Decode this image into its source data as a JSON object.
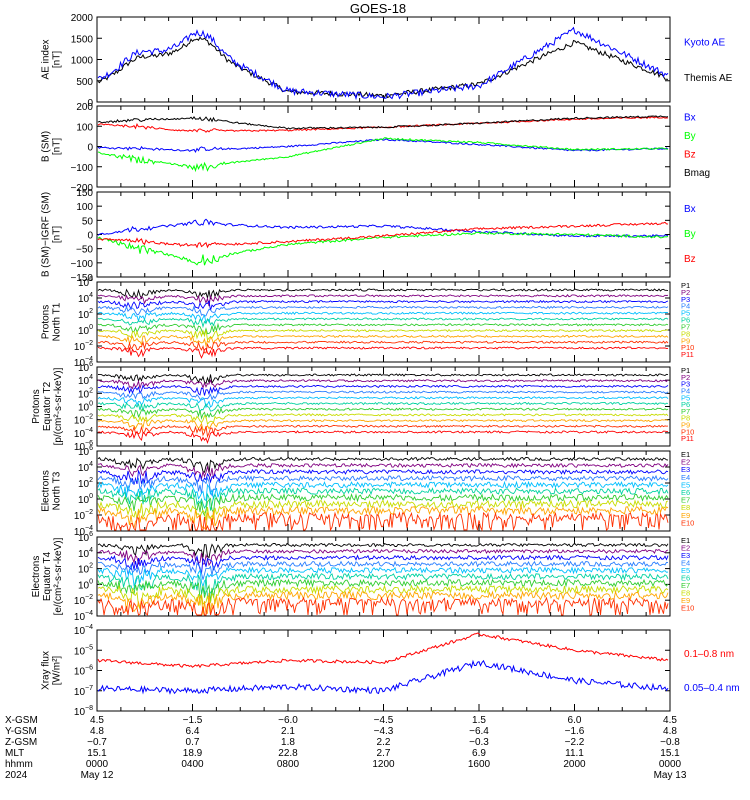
{
  "title": "GOES-18",
  "colors": {
    "black": "#000000",
    "blue": "#0000ff",
    "red": "#ff0000",
    "green": "#00ff00",
    "ladder": [
      "#000000",
      "#800080",
      "#0000ff",
      "#2a7fff",
      "#00bfff",
      "#00d2a0",
      "#32cd32",
      "#c8dc00",
      "#ffa500",
      "#ff3000",
      "#ff0000",
      "#a00000"
    ]
  },
  "panels": [
    {
      "id": "ae",
      "ylabel": [
        "AE index",
        "[nT]"
      ],
      "yticks": [
        "2000",
        "1500",
        "1000",
        "500",
        "0"
      ],
      "legend": [
        {
          "text": "Kyoto AE",
          "color": "#0000ff"
        },
        {
          "text": "Themis AE",
          "color": "#000000"
        }
      ]
    },
    {
      "id": "bsm",
      "ylabel": [
        "B (SM)",
        "[nT]"
      ],
      "yticks": [
        "200",
        "100",
        "0",
        "−100",
        "−200"
      ],
      "legend": [
        {
          "text": "Bx",
          "color": "#0000ff"
        },
        {
          "text": "By",
          "color": "#00ff00"
        },
        {
          "text": "Bz",
          "color": "#ff0000"
        },
        {
          "text": "Bmag",
          "color": "#000000"
        }
      ]
    },
    {
      "id": "bigrf",
      "ylabel": [
        "B (SM)−IGRF (SM)",
        "[nT]"
      ],
      "yticks": [
        "150",
        "100",
        "50",
        "0",
        "−50",
        "−100",
        "−150"
      ],
      "legend": [
        {
          "text": "Bx",
          "color": "#0000ff"
        },
        {
          "text": "By",
          "color": "#00ff00"
        },
        {
          "text": "Bz",
          "color": "#ff0000"
        }
      ]
    },
    {
      "id": "pnorth",
      "ylabel": [
        "Protons",
        "North T1"
      ],
      "yticks": [
        "6",
        "4",
        "2",
        "0",
        "−2",
        "−4"
      ],
      "legend_small": [
        "P1",
        "P2",
        "P3",
        "P4",
        "P5",
        "P6",
        "P7",
        "P8",
        "P9",
        "P10",
        "P11"
      ]
    },
    {
      "id": "peq",
      "ylabel": [
        "Protons",
        "Equator T2",
        "[p/(cm²-s-sr-keV)]"
      ],
      "yticks": [
        "6",
        "4",
        "2",
        "0",
        "−2",
        "−4",
        "−6"
      ],
      "legend_small": [
        "P1",
        "P2",
        "P3",
        "P4",
        "P5",
        "P6",
        "P7",
        "P8",
        "P9",
        "P10",
        "P11"
      ]
    },
    {
      "id": "enorth",
      "ylabel": [
        "Electrons",
        "North T3"
      ],
      "yticks": [
        "6",
        "4",
        "2",
        "0",
        "−2",
        "−4"
      ],
      "legend_small": [
        "E1",
        "E2",
        "E3",
        "E4",
        "E5",
        "E6",
        "E7",
        "E8",
        "E9",
        "E10"
      ]
    },
    {
      "id": "eeq",
      "ylabel": [
        "Electrons",
        "Equator T4",
        "[e/(cm²-s-sr-keV)]"
      ],
      "yticks": [
        "6",
        "4",
        "2",
        "0",
        "−2",
        "−4"
      ],
      "legend_small": [
        "E1",
        "E2",
        "E3",
        "E4",
        "E5",
        "E6",
        "E7",
        "E8",
        "E9",
        "E10"
      ]
    },
    {
      "id": "xray",
      "ylabel": [
        "Xray flux",
        "[W/m²]"
      ],
      "yticks": [
        "−4",
        "−5",
        "−6",
        "−7",
        "−8"
      ],
      "legend": [
        {
          "text": "0.1–0.8 nm",
          "color": "#ff0000"
        },
        {
          "text": "0.05–0.4 nm",
          "color": "#0000ff"
        }
      ]
    }
  ],
  "footer": {
    "labels": [
      "X-GSM",
      "Y-GSM",
      "Z-GSM",
      "MLT",
      "hhmm",
      "2024"
    ],
    "columns": [
      [
        "4.5",
        "4.8",
        "−0.7",
        "15.1",
        "0000",
        "May 12"
      ],
      [
        "−1.5",
        "6.4",
        "0.7",
        "18.9",
        "0400",
        ""
      ],
      [
        "−6.0",
        "2.1",
        "1.8",
        "22.8",
        "0800",
        ""
      ],
      [
        "−4.5",
        "−4.3",
        "2.2",
        "2.7",
        "1200",
        ""
      ],
      [
        "1.5",
        "−6.4",
        "−0.3",
        "6.9",
        "1600",
        ""
      ],
      [
        "6.0",
        "−1.6",
        "−2.2",
        "11.1",
        "2000",
        ""
      ],
      [
        "4.5",
        "4.8",
        "−0.8",
        "15.1",
        "0000",
        "May 13"
      ]
    ]
  },
  "chart_data": [
    {
      "type": "line",
      "ylabel": "AE index [nT]",
      "ylim": [
        0,
        2000
      ],
      "x": [
        "0000",
        "0400",
        "0800",
        "1200",
        "1600",
        "2000",
        "0000"
      ],
      "series": [
        {
          "name": "Kyoto AE",
          "values": [
            520,
            1450,
            260,
            120,
            380,
            1700,
            600
          ]
        },
        {
          "name": "Themis AE",
          "values": [
            450,
            1350,
            240,
            150,
            420,
            1400,
            550
          ]
        }
      ]
    },
    {
      "type": "line",
      "ylabel": "B (SM) [nT]",
      "ylim": [
        -200,
        200
      ],
      "x": [
        "0000",
        "0400",
        "0800",
        "1200",
        "1600",
        "2000",
        "0000"
      ],
      "series": [
        {
          "name": "Bx",
          "values": [
            -5,
            -20,
            0,
            35,
            10,
            -20,
            -10
          ]
        },
        {
          "name": "By",
          "values": [
            -30,
            -100,
            -50,
            40,
            20,
            -15,
            -10
          ]
        },
        {
          "name": "Bz",
          "values": [
            110,
            75,
            80,
            95,
            115,
            135,
            145
          ]
        },
        {
          "name": "Bmag",
          "values": [
            120,
            140,
            90,
            95,
            115,
            140,
            150
          ]
        }
      ]
    },
    {
      "type": "line",
      "ylabel": "B (SM)-IGRF (SM) [nT]",
      "ylim": [
        -150,
        150
      ],
      "x": [
        "0000",
        "0400",
        "0800",
        "1200",
        "1600",
        "2000",
        "0000"
      ],
      "series": [
        {
          "name": "Bx",
          "values": [
            0,
            40,
            25,
            30,
            10,
            -5,
            -5
          ]
        },
        {
          "name": "By",
          "values": [
            -10,
            -90,
            -35,
            -10,
            5,
            0,
            -10
          ]
        },
        {
          "name": "Bz",
          "values": [
            -15,
            -40,
            -25,
            -5,
            20,
            30,
            40
          ]
        }
      ]
    },
    {
      "type": "line",
      "ylabel": "Protons North T1 (log10)",
      "ylim": [
        -4,
        6
      ]
    },
    {
      "type": "line",
      "ylabel": "Protons Equator T2 (log10)",
      "ylim": [
        -6,
        6
      ]
    },
    {
      "type": "line",
      "ylabel": "Electrons North T3 (log10)",
      "ylim": [
        -4,
        6
      ]
    },
    {
      "type": "line",
      "ylabel": "Electrons Equator T4 (log10)",
      "ylim": [
        -4,
        6
      ]
    },
    {
      "type": "line",
      "ylabel": "Xray flux [W/m2] (log10)",
      "ylim": [
        -8,
        -4
      ],
      "x": [
        "0000",
        "0400",
        "0800",
        "1200",
        "1600",
        "2000",
        "0000"
      ],
      "series": [
        {
          "name": "0.1–0.8 nm",
          "values": [
            -5.5,
            -5.8,
            -5.5,
            -5.6,
            -4.2,
            -5.0,
            -5.5
          ]
        },
        {
          "name": "0.05–0.4 nm",
          "values": [
            -6.9,
            -7.0,
            -6.8,
            -7.0,
            -5.6,
            -6.5,
            -6.9
          ]
        }
      ]
    }
  ]
}
